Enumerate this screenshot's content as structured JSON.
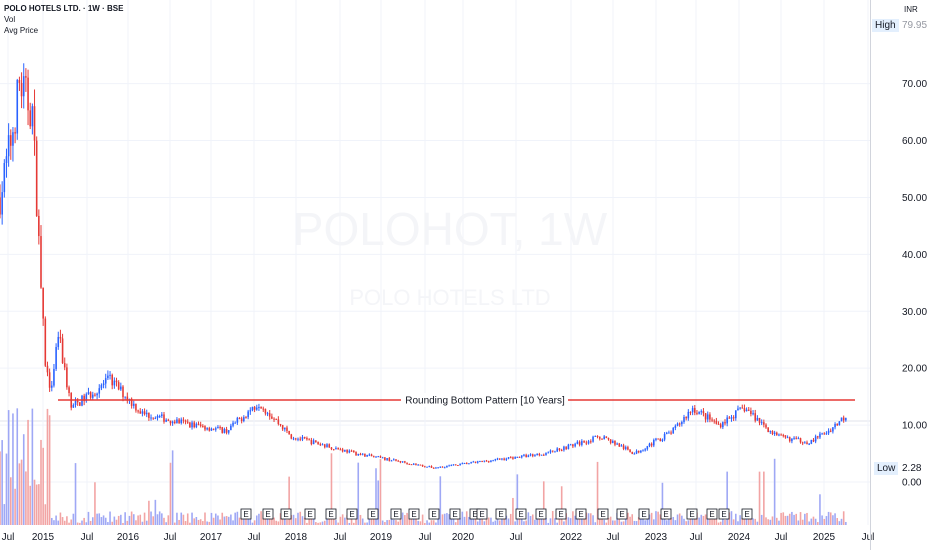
{
  "legend": {
    "title": "POLO HOTELS LTD. · 1W · BSE",
    "line2": "Vol",
    "line3": "Avg Price"
  },
  "axis": {
    "currency": "INR",
    "high_label": "High",
    "high_value": "79.95",
    "low_label": "Low",
    "low_value": "2.28",
    "y_ticks": [
      "70.00",
      "60.00",
      "50.00",
      "40.00",
      "30.00",
      "20.00",
      "10.00",
      "0.00"
    ],
    "x_ticks": [
      "Jul",
      "2015",
      "Jul",
      "2016",
      "Jul",
      "2017",
      "Jul",
      "2018",
      "Jul",
      "2019",
      "Jul",
      "2020",
      "Jul",
      "2022",
      "Jul",
      "2023",
      "Jul",
      "2024",
      "Jul",
      "2025",
      "Jul"
    ]
  },
  "watermark": {
    "symbol": "POLOHOT, 1W",
    "name": "POLO HOTELS LTD"
  },
  "annotation": {
    "text": "Rounding Bottom Pattern [10 Years]",
    "level": 14.4
  },
  "earnings_marker": "E",
  "colors": {
    "up": "#2962ff",
    "down": "#e53935",
    "resistance": "#e53935",
    "vol_up": "#9fa8f5",
    "vol_down": "#f2a4a4",
    "grid": "#f0f3fa"
  },
  "chart_data": {
    "type": "candlestick",
    "title": "POLO HOTELS LTD. · 1W · BSE",
    "ylim": [
      0,
      79.95
    ],
    "y_ticks": [
      0,
      10,
      20,
      30,
      40,
      50,
      60,
      70
    ],
    "high": 79.95,
    "low": 2.28,
    "x_categories": [
      "Jul",
      "2015",
      "Jul",
      "2016",
      "Jul",
      "2017",
      "Jul",
      "2018",
      "Jul",
      "2019",
      "Jul",
      "2020",
      "Jul",
      "2022",
      "Jul",
      "2023",
      "Jul",
      "2024",
      "Jul",
      "2025",
      "Jul"
    ],
    "price_path_approx": [
      {
        "x": "2014-06",
        "y": 50
      },
      {
        "x": "2014-08",
        "y": 62
      },
      {
        "x": "2014-09",
        "y": 70
      },
      {
        "x": "2014-11",
        "y": 65
      },
      {
        "x": "2014-12",
        "y": 42
      },
      {
        "x": "2015-01",
        "y": 20
      },
      {
        "x": "2015-02",
        "y": 16
      },
      {
        "x": "2015-03",
        "y": 26
      },
      {
        "x": "2015-05",
        "y": 13
      },
      {
        "x": "2015-11",
        "y": 18
      },
      {
        "x": "2016-04",
        "y": 12
      },
      {
        "x": "2016-12",
        "y": 10
      },
      {
        "x": "2017-05",
        "y": 9
      },
      {
        "x": "2017-10",
        "y": 14
      },
      {
        "x": "2018-03",
        "y": 8
      },
      {
        "x": "2019-01",
        "y": 5
      },
      {
        "x": "2020-01",
        "y": 2.5
      },
      {
        "x": "2021-06",
        "y": 5
      },
      {
        "x": "2022-03",
        "y": 8
      },
      {
        "x": "2022-08",
        "y": 5
      },
      {
        "x": "2023-02",
        "y": 9
      },
      {
        "x": "2023-05",
        "y": 13
      },
      {
        "x": "2023-09",
        "y": 10
      },
      {
        "x": "2024-01",
        "y": 13
      },
      {
        "x": "2024-06",
        "y": 8
      },
      {
        "x": "2024-11",
        "y": 7
      },
      {
        "x": "2025-02",
        "y": 9
      },
      {
        "x": "2025-05",
        "y": 12
      }
    ],
    "resistance_line": {
      "value": 14.4,
      "label": "Rounding Bottom Pattern [10 Years]"
    },
    "series": [
      {
        "name": "Vol"
      },
      {
        "name": "Avg Price"
      }
    ],
    "grid": true
  }
}
